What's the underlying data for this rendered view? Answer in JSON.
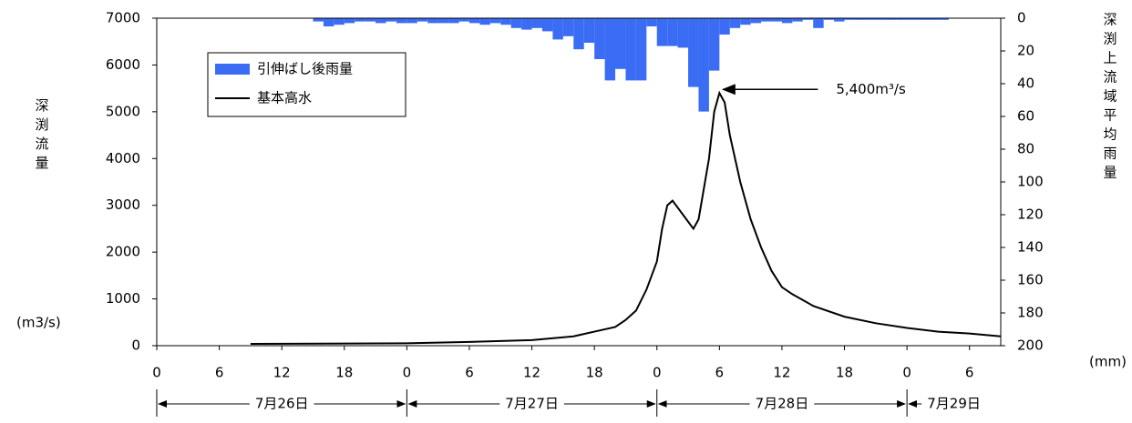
{
  "chart_data": {
    "type": "hydrograph",
    "y_label": "深渕流量",
    "y_unit": "(m3/s)",
    "y2_label": "深渕上流域平均雨量",
    "y2_unit": "(mm)",
    "xlim": [
      0,
      81
    ],
    "xticks": [
      0,
      6,
      12,
      18,
      {
        "value": 24,
        "label": "0"
      },
      {
        "value": 30,
        "label": "6"
      },
      {
        "value": 36,
        "label": "12"
      },
      {
        "value": 42,
        "label": "18"
      },
      {
        "value": 48,
        "label": "0"
      },
      {
        "value": 54,
        "label": "6"
      },
      {
        "value": 60,
        "label": "12"
      },
      {
        "value": 66,
        "label": "18"
      },
      {
        "value": 72,
        "label": "0"
      },
      {
        "value": 78,
        "label": "6"
      }
    ],
    "ylim": [
      0,
      7000
    ],
    "yticks": [
      0,
      1000,
      2000,
      3000,
      4000,
      5000,
      6000,
      7000
    ],
    "y2lim": [
      0,
      200
    ],
    "y2ticks": [
      0,
      20,
      40,
      60,
      80,
      100,
      120,
      140,
      160,
      180,
      200
    ],
    "date_ranges": [
      {
        "label": "7月26日",
        "start": 0,
        "end": 24
      },
      {
        "label": "7月27日",
        "start": 24,
        "end": 48
      },
      {
        "label": "7月28日",
        "start": 48,
        "end": 72
      },
      {
        "label": "7月29日",
        "start": 72,
        "end": 81
      }
    ],
    "series": [
      {
        "name": "引伸ばし後雨量",
        "kind": "bar",
        "axis": "y2",
        "color": "#3a6cf4",
        "x": [
          15,
          16,
          17,
          18,
          19,
          20,
          21,
          22,
          23,
          24,
          25,
          26,
          27,
          28,
          29,
          30,
          31,
          32,
          33,
          34,
          35,
          36,
          37,
          38,
          39,
          40,
          41,
          42,
          43,
          44,
          45,
          46,
          47,
          48,
          49,
          50,
          51,
          52,
          53,
          54,
          55,
          56,
          57,
          58,
          59,
          60,
          61,
          62,
          63,
          64,
          65,
          66,
          67,
          68,
          69,
          70,
          71,
          72,
          73,
          74,
          75
        ],
        "values": [
          2,
          5,
          4,
          3,
          2,
          2,
          3,
          2,
          3,
          3,
          2,
          3,
          3,
          3,
          2,
          3,
          4,
          3,
          4,
          6,
          7,
          6,
          8,
          13,
          11,
          19,
          15,
          25,
          38,
          31,
          38,
          38,
          5,
          17,
          17,
          18,
          42,
          57,
          32,
          10,
          6,
          4,
          3,
          2,
          2,
          3,
          2,
          1,
          6,
          1,
          2,
          1,
          1,
          1,
          1,
          1,
          1,
          1,
          1,
          1,
          1
        ]
      },
      {
        "name": "基本高水",
        "kind": "line",
        "color": "#000000",
        "x": [
          9,
          24,
          30,
          36,
          40,
          42,
          44,
          45,
          46,
          47,
          48,
          48.5,
          49,
          49.5,
          50.5,
          51.5,
          52,
          53,
          53.5,
          54,
          54.5,
          55,
          56,
          57,
          58,
          59,
          60,
          61,
          63,
          66,
          69,
          72,
          75,
          78,
          81
        ],
        "values": [
          40,
          50,
          80,
          120,
          200,
          300,
          400,
          550,
          750,
          1200,
          1800,
          2500,
          3000,
          3100,
          2800,
          2500,
          2700,
          4000,
          5000,
          5400,
          5200,
          4500,
          3500,
          2700,
          2100,
          1600,
          1250,
          1100,
          850,
          620,
          480,
          380,
          300,
          260,
          200
        ]
      }
    ],
    "annotation": {
      "text": "5,400m³/s",
      "x": 54,
      "y": 5400
    }
  }
}
